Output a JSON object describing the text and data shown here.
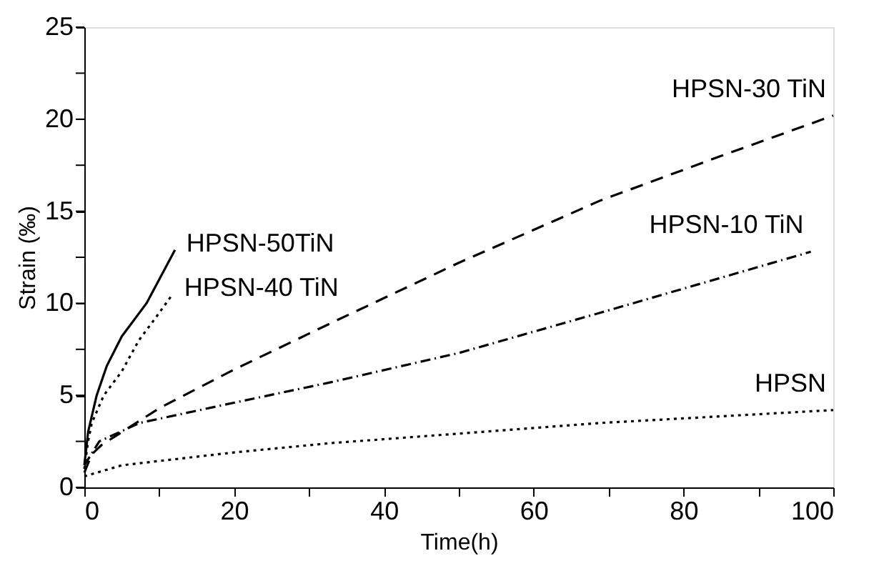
{
  "chart_data": {
    "type": "line",
    "xlabel": "Time(h)",
    "ylabel": "Strain (‰)",
    "xlim": [
      0,
      100
    ],
    "ylim": [
      0,
      25
    ],
    "xticks": [
      0,
      {
        "value": 10,
        "label": null
      },
      20,
      {
        "value": 30,
        "label": null
      },
      40,
      {
        "value": 50,
        "label": null
      },
      60,
      {
        "value": 70,
        "label": null
      },
      80,
      {
        "value": 90,
        "label": null
      },
      100
    ],
    "yticks": [
      0,
      {
        "value": 2.5,
        "label": null
      },
      5,
      {
        "value": 7.5,
        "label": null
      },
      10,
      {
        "value": 12.5,
        "label": null
      },
      15,
      {
        "value": 17.5,
        "label": null
      },
      20,
      {
        "value": 22.5,
        "label": null
      },
      25
    ],
    "grid": false,
    "series": [
      {
        "name": "HPSN-50TiN",
        "color": "#000000",
        "line_style": "solid",
        "x": [
          0,
          0.5,
          1.65,
          3,
          5,
          8.3,
          12.1
        ],
        "values": [
          1.2,
          3,
          5,
          6.6,
          8.2,
          10,
          12.9
        ]
      },
      {
        "name": "HPSN-40 TiN",
        "color": "#000000",
        "line_style": "dotted",
        "x": [
          0,
          0.5,
          1,
          2.6,
          5,
          7.3,
          9.5,
          11.8
        ],
        "values": [
          1.0,
          2.5,
          3.5,
          5,
          6.3,
          8.0,
          9.2,
          10.5
        ]
      },
      {
        "name": "HPSN-30 TiN",
        "color": "#000000",
        "line_style": "dashed",
        "x": [
          0,
          1,
          2.3,
          10,
          20,
          32.8,
          50,
          69,
          85,
          100
        ],
        "values": [
          0.8,
          1.8,
          2.3,
          4.3,
          6.4,
          8.9,
          12.2,
          15.6,
          18,
          20.2
        ]
      },
      {
        "name": "HPSN-10 TiN",
        "color": "#000000",
        "line_style": "dashdot",
        "x": [
          0,
          2,
          7.4,
          20,
          32.8,
          50,
          69,
          97
        ],
        "values": [
          1.2,
          2.5,
          3.5,
          4.6,
          5.7,
          7.3,
          9.5,
          12.8
        ]
      },
      {
        "name": "HPSN",
        "color": "#000000",
        "line_style": "dotted",
        "x": [
          0,
          5,
          20,
          32.8,
          69,
          100
        ],
        "values": [
          0.6,
          1.2,
          1.9,
          2.4,
          3.5,
          4.2
        ]
      }
    ]
  }
}
